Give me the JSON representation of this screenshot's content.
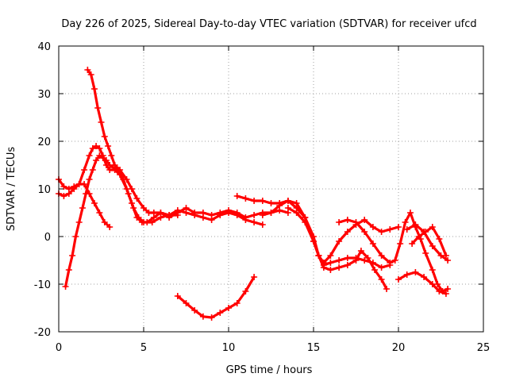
{
  "chart_data": {
    "type": "scatter",
    "title": "Day 226 of 2025, Sidereal Day-to-day VTEC variation (SDTVAR) for receiver ufcd",
    "xlabel": "GPS time / hours",
    "ylabel": "SDTVAR / TECUs",
    "xlim": [
      0,
      25
    ],
    "ylim": [
      -20,
      40
    ],
    "xticks": [
      "0",
      "5",
      "10",
      "15",
      "20",
      "25"
    ],
    "yticks": [
      "-20",
      "-10",
      "0",
      "10",
      "20",
      "30",
      "40"
    ],
    "grid": true,
    "marker": "plus",
    "color": "#ff0000",
    "series": [
      {
        "name": "s1",
        "x": [
          1.7,
          1.9,
          2.1,
          2.3,
          2.5,
          2.7,
          2.9,
          3.1,
          3.3,
          3.6,
          4.0,
          4.3,
          4.6,
          5.0,
          5.3,
          5.6,
          6.0,
          6.5,
          7.0
        ],
        "y": [
          35,
          34,
          31,
          27,
          24,
          21,
          19,
          17,
          15,
          14,
          12,
          10,
          8,
          6,
          5,
          5,
          5,
          4.5,
          4.5
        ]
      },
      {
        "name": "s2",
        "x": [
          0.0,
          0.3,
          0.6,
          0.9,
          1.2,
          1.5,
          1.8,
          2.0,
          2.2,
          2.4,
          2.6,
          2.8,
          3.0,
          3.3,
          3.6,
          4.0,
          4.3,
          4.6,
          4.9,
          5.2,
          5.6,
          6.0,
          6.5,
          7.0,
          7.5,
          8.0,
          8.5,
          9.0,
          9.5,
          10.0,
          10.5,
          11.0,
          11.5,
          12.0,
          12.5,
          13.0,
          13.5
        ],
        "y": [
          9,
          8.5,
          9,
          10,
          11,
          14,
          17,
          18.5,
          19,
          18.5,
          17,
          15,
          14,
          14,
          13,
          10,
          7,
          4,
          3,
          3,
          4,
          5,
          4,
          5,
          6,
          5,
          5,
          4.5,
          5,
          5.5,
          5,
          4,
          4.5,
          5,
          5,
          5.5,
          5
        ]
      },
      {
        "name": "s3",
        "x": [
          0.0,
          0.3,
          0.6,
          0.9,
          1.2,
          1.5,
          1.8,
          2.1,
          2.4,
          2.7,
          3.0
        ],
        "y": [
          12,
          10.5,
          10,
          10.5,
          11,
          11,
          9,
          7,
          5,
          3,
          2
        ]
      },
      {
        "name": "s4",
        "x": [
          0.4,
          0.6,
          0.8,
          1.0,
          1.2,
          1.4,
          1.6,
          1.8,
          2.0,
          2.2,
          2.4,
          2.6,
          2.8,
          3.0,
          3.2,
          3.5,
          3.8,
          4.1,
          4.4,
          4.7,
          5.0,
          5.5,
          6.0,
          6.5,
          7.0,
          7.5,
          8.0,
          8.5,
          9.0,
          9.5,
          10.0,
          10.5,
          11.0,
          11.5,
          12.0
        ],
        "y": [
          -10.5,
          -7,
          -4,
          0,
          3,
          6,
          9,
          12,
          14,
          16,
          17,
          16.5,
          16,
          15,
          14.5,
          14,
          12,
          9,
          6,
          4,
          3,
          3,
          4,
          4.5,
          5.5,
          5,
          4.5,
          4,
          3.5,
          4.5,
          5,
          4.5,
          3.5,
          3,
          2.5
        ]
      },
      {
        "name": "s5",
        "x": [
          7.0,
          7.5,
          8.0,
          8.5,
          9.0,
          9.5,
          10.0,
          10.5,
          11.0,
          11.5
        ],
        "y": [
          -12.5,
          -14,
          -15.5,
          -16.8,
          -17,
          -16,
          -15,
          -14,
          -11.5,
          -8.5
        ]
      },
      {
        "name": "s6",
        "x": [
          10.5,
          11.0,
          11.5,
          12.0,
          12.5,
          13.0,
          13.5,
          14.0,
          14.5,
          15.0,
          15.3,
          15.6,
          16.0,
          16.5,
          17.0,
          17.5,
          18.0,
          18.5,
          19.0,
          19.5
        ],
        "y": [
          8.5,
          8,
          7.5,
          7.5,
          7,
          7,
          7.5,
          6,
          4,
          0,
          -4,
          -6,
          -5.5,
          -5,
          -4.5,
          -4.5,
          -5,
          -5.5,
          -6.5,
          -6
        ]
      },
      {
        "name": "s7",
        "x": [
          12.0,
          12.5,
          13.0,
          13.5,
          14.0,
          14.5,
          15.0,
          15.3,
          15.6,
          16.0,
          16.5,
          17.0,
          17.5,
          18.0,
          18.5,
          19.0,
          19.5,
          20.0
        ],
        "y": [
          4.5,
          5,
          6.5,
          7.5,
          7,
          4,
          -1,
          -4,
          -5.5,
          -4,
          -1,
          1,
          2.5,
          3.5,
          2,
          1,
          1.5,
          2
        ]
      },
      {
        "name": "s8",
        "x": [
          13.5,
          14.0,
          14.5,
          15.0,
          15.3,
          15.6,
          16.0,
          16.5,
          17.0,
          17.5,
          17.8,
          18.2,
          18.6,
          19.0,
          19.3
        ],
        "y": [
          6,
          5,
          3,
          -1,
          -4,
          -6.5,
          -7,
          -6.5,
          -6,
          -5,
          -3,
          -4.5,
          -7,
          -9,
          -11
        ]
      },
      {
        "name": "s9",
        "x": [
          16.5,
          17.0,
          17.5,
          18.0,
          18.5,
          19.0,
          19.5,
          19.8,
          20.1,
          20.4,
          20.7,
          21.0,
          21.3,
          21.6,
          22.0,
          22.3,
          22.6,
          22.9
        ],
        "y": [
          3,
          3.5,
          3,
          1,
          -1.5,
          -4,
          -5.5,
          -5,
          -1.5,
          3,
          5,
          2,
          -0.5,
          -3.5,
          -7,
          -10,
          -11.5,
          -11
        ]
      },
      {
        "name": "s10",
        "x": [
          20.0,
          20.5,
          21.0,
          21.5,
          22.0,
          22.4,
          22.8
        ],
        "y": [
          -9,
          -8,
          -7.5,
          -8.5,
          -10,
          -11.5,
          -12
        ]
      },
      {
        "name": "s11",
        "x": [
          20.5,
          21.0,
          21.5,
          22.0,
          22.5,
          22.9
        ],
        "y": [
          1.5,
          2.5,
          1,
          -2,
          -4,
          -5
        ]
      },
      {
        "name": "s12",
        "x": [
          20.8,
          21.2,
          21.6,
          22.0,
          22.4,
          22.8
        ],
        "y": [
          -1.5,
          0,
          1,
          2,
          -0.5,
          -4
        ]
      }
    ]
  }
}
